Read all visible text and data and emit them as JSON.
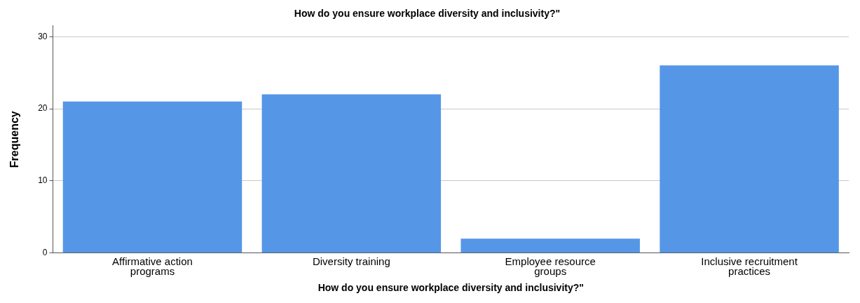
{
  "chart_data": {
    "type": "bar",
    "title": "How do you ensure workplace diversity and inclusivity?\"",
    "xlabel": "How do you ensure workplace diversity and inclusivity?\"",
    "ylabel": "Frequency",
    "categories": [
      "Affirmative action programs",
      "Diversity training",
      "Employee resource groups",
      "Inclusive recruitment practices"
    ],
    "values": [
      21,
      22,
      2,
      26
    ],
    "color": "#5596e6",
    "ylim": [
      0,
      31.5
    ],
    "yticks": [
      0,
      10,
      20,
      30
    ],
    "grid": "y",
    "legend": false
  }
}
